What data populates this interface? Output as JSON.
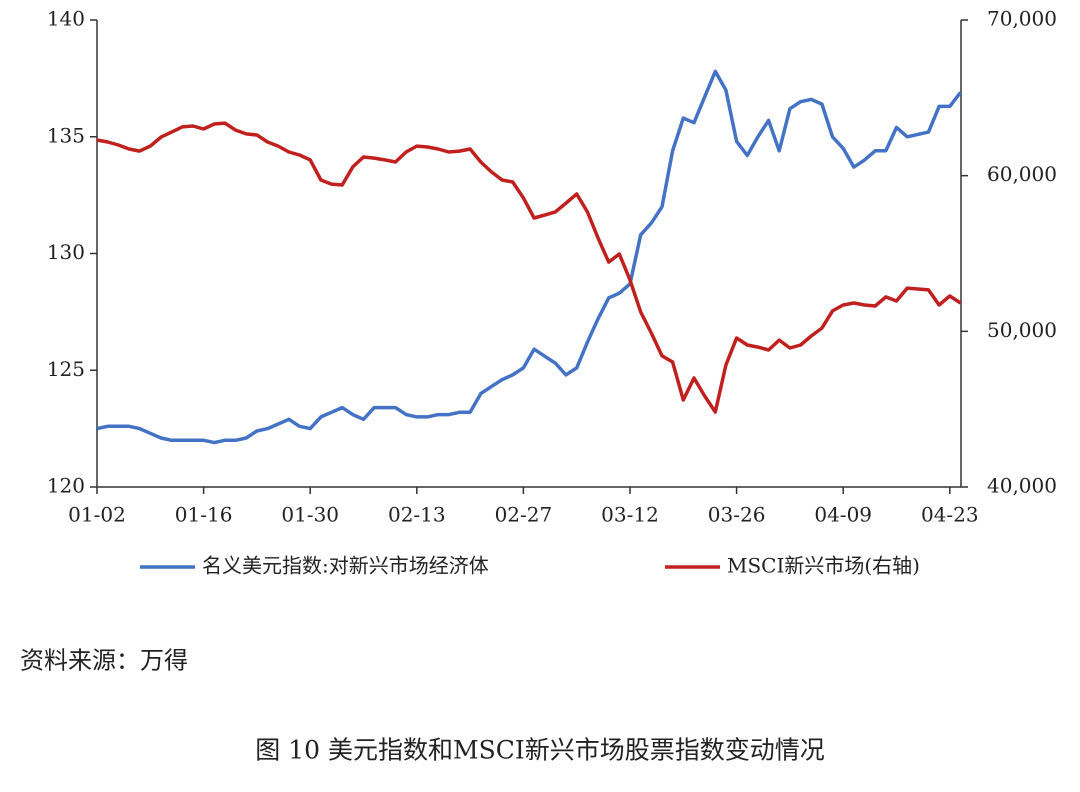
{
  "chart_data": {
    "type": "line",
    "caption": "图 10 美元指数和MSCI新兴市场股票指数变动情况",
    "source": "资料来源：万得",
    "categories": [
      "01-02",
      null,
      null,
      null,
      null,
      null,
      null,
      null,
      null,
      null,
      "01-16",
      null,
      null,
      null,
      null,
      null,
      null,
      null,
      null,
      null,
      "01-30",
      null,
      null,
      null,
      null,
      null,
      null,
      null,
      null,
      null,
      "02-13",
      null,
      null,
      null,
      null,
      null,
      null,
      null,
      null,
      null,
      "02-27",
      null,
      null,
      null,
      null,
      null,
      null,
      null,
      null,
      null,
      "03-12",
      null,
      null,
      null,
      null,
      null,
      null,
      null,
      null,
      null,
      "03-26",
      null,
      null,
      null,
      null,
      null,
      null,
      null,
      null,
      null,
      "04-09",
      null,
      null,
      null,
      null,
      null,
      null,
      null,
      null,
      null,
      "04-23",
      null
    ],
    "series": [
      {
        "name": "名义美元指数:对新兴市场经济体",
        "color": "#4472c4",
        "axis": "y",
        "values": [
          122.5,
          122.6,
          122.6,
          122.6,
          122.5,
          122.3,
          122.1,
          122.0,
          122.0,
          122.0,
          122.0,
          121.9,
          122.0,
          122.0,
          122.1,
          122.4,
          122.5,
          122.7,
          122.9,
          122.6,
          122.5,
          123.0,
          123.2,
          123.4,
          123.1,
          122.9,
          123.4,
          123.4,
          123.4,
          123.1,
          123.0,
          123.0,
          123.1,
          123.1,
          123.2,
          123.2,
          124.0,
          124.3,
          124.6,
          124.8,
          125.1,
          125.9,
          125.6,
          125.3,
          124.8,
          125.1,
          126.2,
          127.2,
          128.1,
          128.3,
          128.7,
          130.8,
          131.3,
          132.0,
          134.4,
          135.8,
          135.6,
          136.7,
          137.8,
          137.0,
          134.8,
          134.2,
          135.0,
          135.7,
          134.4,
          136.2,
          136.5,
          136.6,
          136.4,
          135.0,
          134.5,
          133.7,
          134.0,
          134.4,
          134.4,
          135.4,
          135.0,
          135.1,
          135.2,
          136.3,
          136.3,
          136.9
        ]
      },
      {
        "name": "MSCI新兴市场(右轴)",
        "color": "#c0201e",
        "axis": "y2",
        "values": [
          62290,
          62160,
          61970,
          61710,
          61580,
          61900,
          62480,
          62800,
          63130,
          63190,
          63000,
          63320,
          63380,
          62930,
          62680,
          62610,
          62160,
          61900,
          61520,
          61330,
          61010,
          59720,
          59460,
          59400,
          60560,
          61200,
          61130,
          61010,
          60880,
          61520,
          61900,
          61840,
          61710,
          61520,
          61580,
          61710,
          60880,
          60240,
          59720,
          59590,
          58570,
          57280,
          57470,
          57670,
          58240,
          58820,
          57670,
          56000,
          54450,
          54970,
          53300,
          51240,
          49890,
          48420,
          48030,
          45590,
          47000,
          45850,
          44820,
          47840,
          49570,
          49120,
          48990,
          48800,
          49440,
          48930,
          49120,
          49700,
          50210,
          51310,
          51690,
          51820,
          51690,
          51630,
          52210,
          51950,
          52780,
          52720,
          52660,
          51690,
          52270,
          51820
        ]
      }
    ],
    "ylim": [
      120,
      140
    ],
    "yticks": [
      120,
      125,
      130,
      135,
      140
    ],
    "y2lim": [
      40000,
      70000
    ],
    "y2ticks": [
      {
        "value": 40000,
        "label": "40,000"
      },
      {
        "value": 50000,
        "label": "50,000"
      },
      {
        "value": 60000,
        "label": "60,000"
      },
      {
        "value": 70000,
        "label": "70,000"
      }
    ],
    "grid": false,
    "legend": "bottom"
  }
}
